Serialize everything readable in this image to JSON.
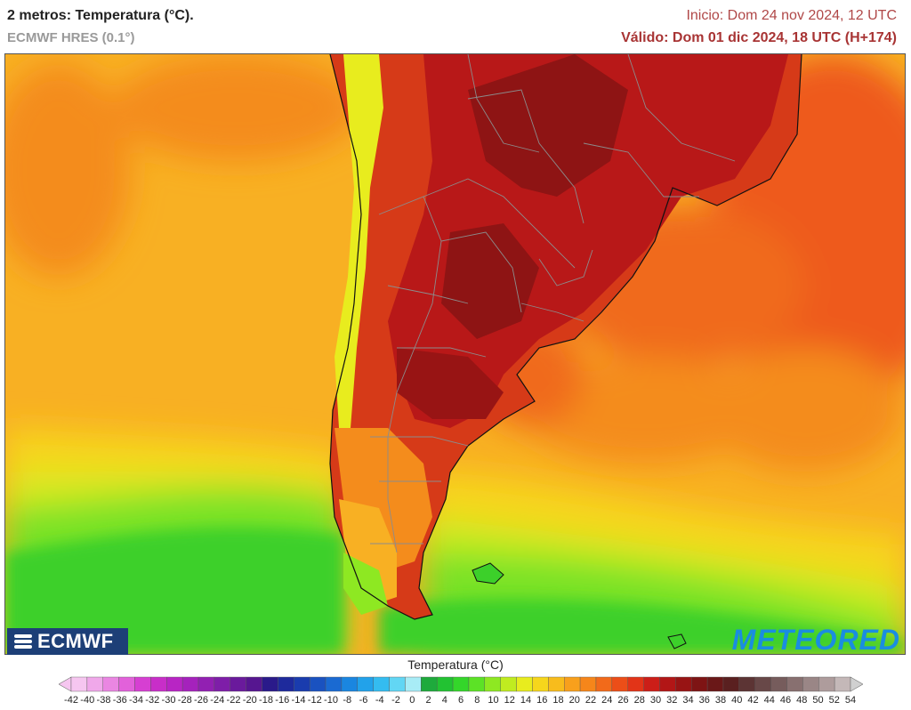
{
  "header": {
    "title": "2 metros: Temperatura (°C).",
    "model": "ECMWF HRES (0.1°)",
    "init": "Inicio: Dom 24 nov 2024, 12 UTC",
    "valid": "Válido: Dom 01 dic 2024, 18 UTC (H+174)"
  },
  "logos": {
    "left": "ECMWF",
    "right": "METEORED"
  },
  "legend": {
    "title": "Temperatura (°C)",
    "ticks": [
      -42,
      -40,
      -38,
      -36,
      -34,
      -32,
      -30,
      -28,
      -26,
      -24,
      -22,
      -20,
      -18,
      -16,
      -14,
      -12,
      -10,
      -8,
      -6,
      -4,
      -2,
      0,
      2,
      4,
      6,
      8,
      10,
      12,
      14,
      16,
      18,
      20,
      22,
      24,
      26,
      28,
      30,
      32,
      34,
      36,
      38,
      40,
      42,
      44,
      46,
      48,
      50,
      52,
      54
    ],
    "colors": [
      "#f6c6f0",
      "#f0a8ea",
      "#ea86e2",
      "#e261da",
      "#d63fd2",
      "#c82ec8",
      "#b825c4",
      "#a522bc",
      "#9220b2",
      "#7e1ea8",
      "#6a1a9c",
      "#561690",
      "#2a1a8a",
      "#1e2a9c",
      "#1a3cae",
      "#1a52c0",
      "#1a6ad2",
      "#1a86e0",
      "#22a2ea",
      "#34bcf0",
      "#62d6f4",
      "#a8ecf6",
      "#1eaa3c",
      "#22c232",
      "#34d62a",
      "#5ce226",
      "#8ee822",
      "#c0ec20",
      "#e8ec1e",
      "#f6d61c",
      "#f8bc1c",
      "#f8a01c",
      "#f6861a",
      "#f26a1a",
      "#ec4e18",
      "#e23418",
      "#cc1e18",
      "#b21616",
      "#981414",
      "#7e1414",
      "#6a1818",
      "#5a2020",
      "#5c3434",
      "#684848",
      "#765c5c",
      "#887070",
      "#9a8686",
      "#ae9c9c",
      "#c4b8b8"
    ]
  },
  "map": {
    "colors": {
      "ocean_warm": "#f8b023",
      "ocean_orange": "#f48c1c",
      "ocean_red": "#ee5a1c",
      "cool_yellow": "#e4ea1e",
      "green": "#3cd02a",
      "land_hot": "#c81e18",
      "land_very_hot": "#8e1414",
      "border": "#8c8c8c",
      "coast": "#111111"
    }
  }
}
